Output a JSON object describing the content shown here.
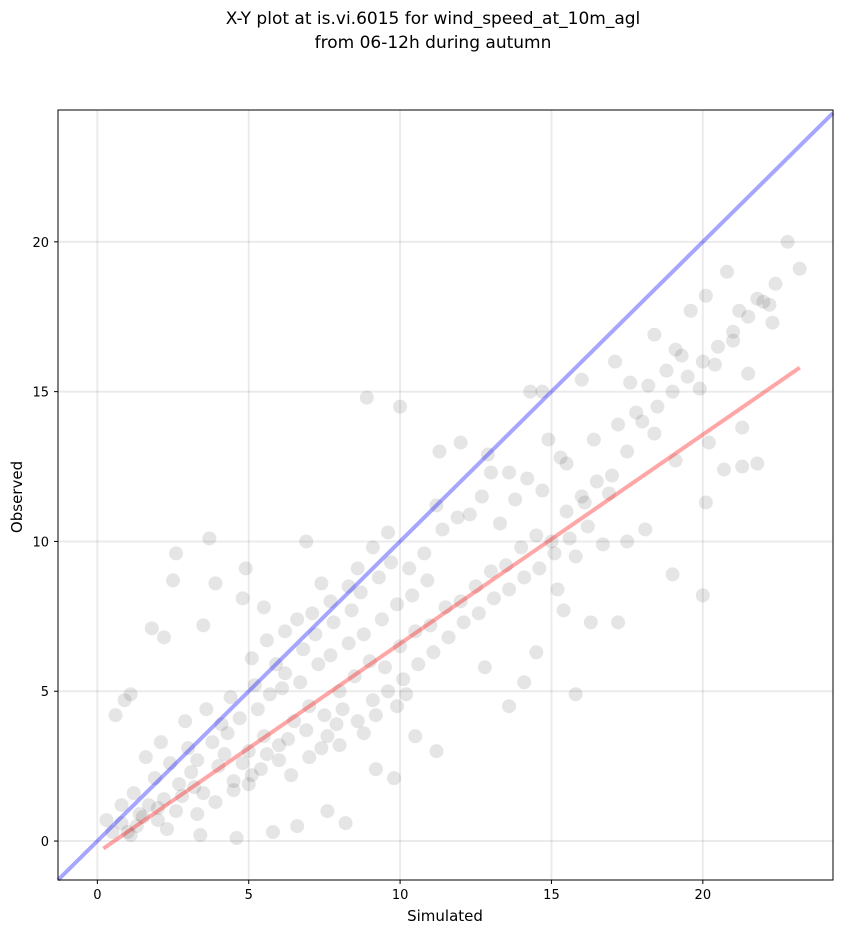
{
  "chart_data": {
    "type": "scatter",
    "title_line1": "X-Y plot at is.vi.6015 for wind_speed_at_10m_agl",
    "title_line2": "from 06-12h during autumn",
    "xlabel": "Simulated",
    "ylabel": "Observed",
    "xlim": [
      -1.3,
      24.3
    ],
    "ylim": [
      -1.3,
      24.4
    ],
    "xticks": [
      0,
      5,
      10,
      15,
      20
    ],
    "yticks": [
      0,
      5,
      10,
      15,
      20
    ],
    "grid": true,
    "point_color": "#000000",
    "identity_line_color": "#0000ff",
    "fit_line_color": "#ff0000",
    "identity_line": {
      "x": [
        -1.3,
        24.3
      ],
      "y": [
        -1.3,
        24.3
      ]
    },
    "fit_line": {
      "x": [
        0.2,
        23.2
      ],
      "y": [
        -0.25,
        15.8
      ]
    },
    "points": [
      [
        1.0,
        0.3
      ],
      [
        1.5,
        0.8
      ],
      [
        2.0,
        1.1
      ],
      [
        2.8,
        1.5
      ],
      [
        3.2,
        1.8
      ],
      [
        4.0,
        2.5
      ],
      [
        4.5,
        2.0
      ],
      [
        5.0,
        3.0
      ],
      [
        5.5,
        3.5
      ],
      [
        6.0,
        3.2
      ],
      [
        6.5,
        4.0
      ],
      [
        7.0,
        4.5
      ],
      [
        7.5,
        4.2
      ],
      [
        8.0,
        5.0
      ],
      [
        8.5,
        5.5
      ],
      [
        9.0,
        6.0
      ],
      [
        9.5,
        5.8
      ],
      [
        10.0,
        6.5
      ],
      [
        10.5,
        7.0
      ],
      [
        11.0,
        7.2
      ],
      [
        11.5,
        7.8
      ],
      [
        12.0,
        8.0
      ],
      [
        12.5,
        8.5
      ],
      [
        13.0,
        9.0
      ],
      [
        13.5,
        9.2
      ],
      [
        14.0,
        9.8
      ],
      [
        14.5,
        10.2
      ],
      [
        15.0,
        10.0
      ],
      [
        15.5,
        11.0
      ],
      [
        16.0,
        11.5
      ],
      [
        16.5,
        12.0
      ],
      [
        17.0,
        12.2
      ],
      [
        17.5,
        13.0
      ],
      [
        18.0,
        14.0
      ],
      [
        18.5,
        14.5
      ],
      [
        19.0,
        15.0
      ],
      [
        19.5,
        15.5
      ],
      [
        20.0,
        16.0
      ],
      [
        20.5,
        16.5
      ],
      [
        21.0,
        17.0
      ],
      [
        21.5,
        17.5
      ],
      [
        22.0,
        18.0
      ],
      [
        22.8,
        20.0
      ],
      [
        23.2,
        19.1
      ],
      [
        22.4,
        18.6
      ],
      [
        21.8,
        18.1
      ],
      [
        20.1,
        18.2
      ],
      [
        20.8,
        19.0
      ],
      [
        22.2,
        17.9
      ],
      [
        21.2,
        17.7
      ],
      [
        8.9,
        14.8
      ],
      [
        10.0,
        14.5
      ],
      [
        3.7,
        10.1
      ],
      [
        2.6,
        9.6
      ],
      [
        4.9,
        9.1
      ],
      [
        6.9,
        10.0
      ],
      [
        7.4,
        8.6
      ],
      [
        1.8,
        7.1
      ],
      [
        2.2,
        6.8
      ],
      [
        2.5,
        8.7
      ],
      [
        3.9,
        8.6
      ],
      [
        3.5,
        7.2
      ],
      [
        4.8,
        8.1
      ],
      [
        5.5,
        7.8
      ],
      [
        0.6,
        4.2
      ],
      [
        0.9,
        4.7
      ],
      [
        1.1,
        4.9
      ],
      [
        0.3,
        0.7
      ],
      [
        0.8,
        1.2
      ],
      [
        1.3,
        0.5
      ],
      [
        15.8,
        4.9
      ],
      [
        13.6,
        4.5
      ],
      [
        14.1,
        5.3
      ],
      [
        12.8,
        5.8
      ],
      [
        11.2,
        3.0
      ],
      [
        10.5,
        3.5
      ],
      [
        9.8,
        2.1
      ],
      [
        9.2,
        2.4
      ],
      [
        8.2,
        0.6
      ],
      [
        7.6,
        1.0
      ],
      [
        6.6,
        0.5
      ],
      [
        5.8,
        0.3
      ],
      [
        4.6,
        0.1
      ],
      [
        3.4,
        0.2
      ],
      [
        2.3,
        0.4
      ],
      [
        19.0,
        8.9
      ],
      [
        20.0,
        8.2
      ],
      [
        17.2,
        7.3
      ],
      [
        16.3,
        7.3
      ],
      [
        15.4,
        7.7
      ],
      [
        14.5,
        6.3
      ],
      [
        15.2,
        8.4
      ],
      [
        20.1,
        11.3
      ],
      [
        20.7,
        12.4
      ],
      [
        21.3,
        12.5
      ],
      [
        21.8,
        12.6
      ],
      [
        20.2,
        13.3
      ],
      [
        21.3,
        13.8
      ],
      [
        18.4,
        13.6
      ],
      [
        19.1,
        12.7
      ],
      [
        16.0,
        15.4
      ],
      [
        17.1,
        16.0
      ],
      [
        18.4,
        16.9
      ],
      [
        19.1,
        16.4
      ],
      [
        14.3,
        15.0
      ],
      [
        14.7,
        15.0
      ],
      [
        12.0,
        13.3
      ],
      [
        12.9,
        12.9
      ],
      [
        11.3,
        13.0
      ],
      [
        11.2,
        11.2
      ],
      [
        13.6,
        12.3
      ],
      [
        13.0,
        12.3
      ],
      [
        14.9,
        13.4
      ],
      [
        15.5,
        12.6
      ],
      [
        16.1,
        11.3
      ],
      [
        16.9,
        11.6
      ],
      [
        17.5,
        10.0
      ],
      [
        18.1,
        10.4
      ],
      [
        15.8,
        9.5
      ],
      [
        16.7,
        9.9
      ],
      [
        1.6,
        2.8
      ],
      [
        2.1,
        3.3
      ],
      [
        2.9,
        4.0
      ],
      [
        3.6,
        4.4
      ],
      [
        4.1,
        3.9
      ],
      [
        4.4,
        4.8
      ],
      [
        5.2,
        5.2
      ],
      [
        5.9,
        5.9
      ],
      [
        6.2,
        5.6
      ],
      [
        6.8,
        6.4
      ],
      [
        7.2,
        6.9
      ],
      [
        7.8,
        7.3
      ],
      [
        8.4,
        7.7
      ],
      [
        8.7,
        8.3
      ],
      [
        9.3,
        8.8
      ],
      [
        9.7,
        9.3
      ],
      [
        10.3,
        9.1
      ],
      [
        10.8,
        9.6
      ],
      [
        11.4,
        10.4
      ],
      [
        11.9,
        10.8
      ],
      [
        1.2,
        1.6
      ],
      [
        1.9,
        2.1
      ],
      [
        2.4,
        2.6
      ],
      [
        3.0,
        3.1
      ],
      [
        3.3,
        2.7
      ],
      [
        3.8,
        3.3
      ],
      [
        4.3,
        3.6
      ],
      [
        4.7,
        4.1
      ],
      [
        5.3,
        4.4
      ],
      [
        5.7,
        4.9
      ],
      [
        6.1,
        5.1
      ],
      [
        6.7,
        5.3
      ],
      [
        7.3,
        5.9
      ],
      [
        7.7,
        6.2
      ],
      [
        8.3,
        6.6
      ],
      [
        8.8,
        6.9
      ],
      [
        9.4,
        7.4
      ],
      [
        9.9,
        7.9
      ],
      [
        10.4,
        8.2
      ],
      [
        10.9,
        8.7
      ],
      [
        1.4,
        0.9
      ],
      [
        2.2,
        1.4
      ],
      [
        2.7,
        1.9
      ],
      [
        3.1,
        2.3
      ],
      [
        3.5,
        1.6
      ],
      [
        4.2,
        2.9
      ],
      [
        4.8,
        2.6
      ],
      [
        5.1,
        2.2
      ],
      [
        5.6,
        2.9
      ],
      [
        6.3,
        3.4
      ],
      [
        6.9,
        3.7
      ],
      [
        7.4,
        3.1
      ],
      [
        7.9,
        3.9
      ],
      [
        8.1,
        4.4
      ],
      [
        8.6,
        4.0
      ],
      [
        9.1,
        4.7
      ],
      [
        9.6,
        5.0
      ],
      [
        10.1,
        5.4
      ],
      [
        10.6,
        5.9
      ],
      [
        11.1,
        6.3
      ],
      [
        11.6,
        6.8
      ],
      [
        12.1,
        7.3
      ],
      [
        12.6,
        7.6
      ],
      [
        13.1,
        8.1
      ],
      [
        13.6,
        8.4
      ],
      [
        14.1,
        8.8
      ],
      [
        14.6,
        9.1
      ],
      [
        15.1,
        9.6
      ],
      [
        15.6,
        10.1
      ],
      [
        16.2,
        10.5
      ],
      [
        0.5,
        0.3
      ],
      [
        0.8,
        0.6
      ],
      [
        1.1,
        0.2
      ],
      [
        1.7,
        1.2
      ],
      [
        2.0,
        0.7
      ],
      [
        2.6,
        1.0
      ],
      [
        3.3,
        0.9
      ],
      [
        3.9,
        1.3
      ],
      [
        4.5,
        1.7
      ],
      [
        5.0,
        1.9
      ],
      [
        5.4,
        2.4
      ],
      [
        6.0,
        2.7
      ],
      [
        6.4,
        2.2
      ],
      [
        7.0,
        2.8
      ],
      [
        7.6,
        3.5
      ],
      [
        8.0,
        3.2
      ],
      [
        8.8,
        3.6
      ],
      [
        9.2,
        4.2
      ],
      [
        9.9,
        4.5
      ],
      [
        10.2,
        4.9
      ],
      [
        5.1,
        6.1
      ],
      [
        5.6,
        6.7
      ],
      [
        6.2,
        7.0
      ],
      [
        6.6,
        7.4
      ],
      [
        7.1,
        7.6
      ],
      [
        7.7,
        8.0
      ],
      [
        8.3,
        8.5
      ],
      [
        8.6,
        9.1
      ],
      [
        9.1,
        9.8
      ],
      [
        9.6,
        10.3
      ],
      [
        12.3,
        10.9
      ],
      [
        12.7,
        11.5
      ],
      [
        13.3,
        10.6
      ],
      [
        13.8,
        11.4
      ],
      [
        14.2,
        12.1
      ],
      [
        14.7,
        11.7
      ],
      [
        15.3,
        12.8
      ],
      [
        16.4,
        13.4
      ],
      [
        17.2,
        13.9
      ],
      [
        17.8,
        14.3
      ],
      [
        18.2,
        15.2
      ],
      [
        18.8,
        15.7
      ],
      [
        19.3,
        16.2
      ],
      [
        19.9,
        15.1
      ],
      [
        20.4,
        15.9
      ],
      [
        21.0,
        16.7
      ],
      [
        21.5,
        15.6
      ],
      [
        22.3,
        17.3
      ],
      [
        17.6,
        15.3
      ],
      [
        19.6,
        17.7
      ]
    ]
  }
}
